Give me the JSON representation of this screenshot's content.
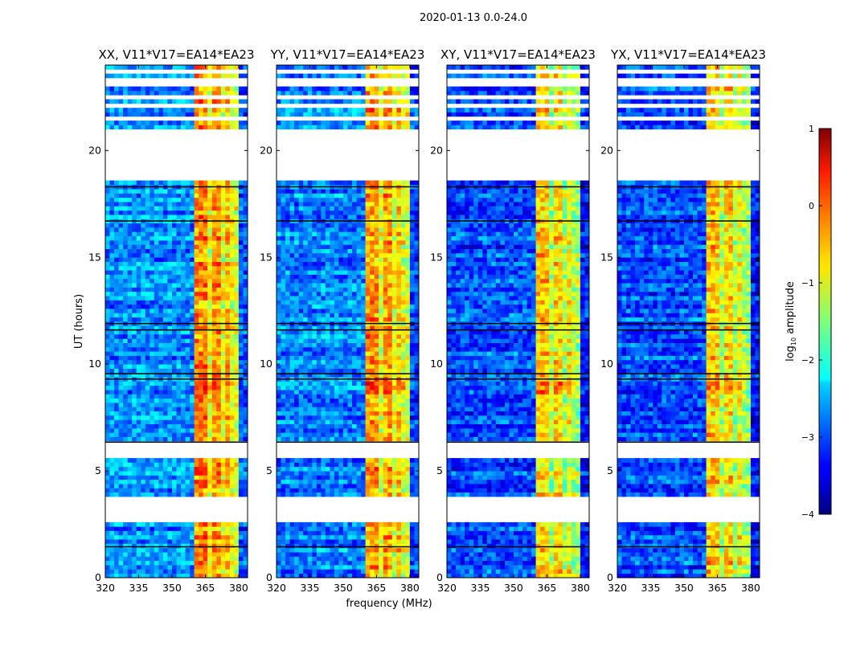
{
  "chart_data": {
    "type": "heatmap",
    "title": "2020-01-13 0.0-24.0",
    "xlabel": "frequency (MHz)",
    "ylabel": "UT (hours)",
    "xlim": [
      320,
      384
    ],
    "ylim": [
      0,
      24
    ],
    "xticks": [
      "320",
      "335",
      "350",
      "365",
      "380"
    ],
    "xtick_values": [
      320,
      335,
      350,
      365,
      380
    ],
    "yticks": [
      "0",
      "5",
      "10",
      "15",
      "20"
    ],
    "ytick_values": [
      0,
      5,
      10,
      15,
      20
    ],
    "panels": [
      {
        "title": "XX, V11*V17=EA14*EA23",
        "offset": 0.0
      },
      {
        "title": "YY, V11*V17=EA14*EA23",
        "offset": 0.0
      },
      {
        "title": "XY, V11*V17=EA14*EA23",
        "offset": -0.3
      },
      {
        "title": "YX, V11*V17=EA14*EA23",
        "offset": -0.3
      }
    ],
    "flagged_time_ranges_hours": [
      [
        2.65,
        3.8
      ],
      [
        5.65,
        6.33
      ],
      [
        18.5,
        21.0
      ],
      [
        21.3,
        21.55
      ],
      [
        21.9,
        22.15
      ],
      [
        22.45,
        22.6
      ],
      [
        22.95,
        23.3
      ],
      [
        23.6,
        23.7
      ]
    ],
    "freq_profile": [
      {
        "range": [
          320,
          361
        ],
        "level": -2.7
      },
      {
        "range": [
          361,
          366
        ],
        "level": -0.3
      },
      {
        "range": [
          366,
          368
        ],
        "level": -1.0
      },
      {
        "range": [
          368,
          372
        ],
        "level": -0.4
      },
      {
        "range": [
          372,
          374
        ],
        "level": -1.0
      },
      {
        "range": [
          374,
          377
        ],
        "level": -0.6
      },
      {
        "range": [
          377,
          380
        ],
        "level": -1.0
      },
      {
        "range": [
          380,
          384
        ],
        "level": -3.0
      }
    ],
    "colorbar": {
      "label": "log10 amplitude",
      "label_main": "log",
      "label_sub": "10",
      "label_rest": " amplitude",
      "colormap": "jet",
      "range": [
        -4,
        1
      ],
      "ticks": [
        "−4",
        "−3",
        "−2",
        "−1",
        "0",
        "1"
      ],
      "tick_values": [
        -4,
        -3,
        -2,
        -1,
        0,
        1
      ]
    }
  }
}
